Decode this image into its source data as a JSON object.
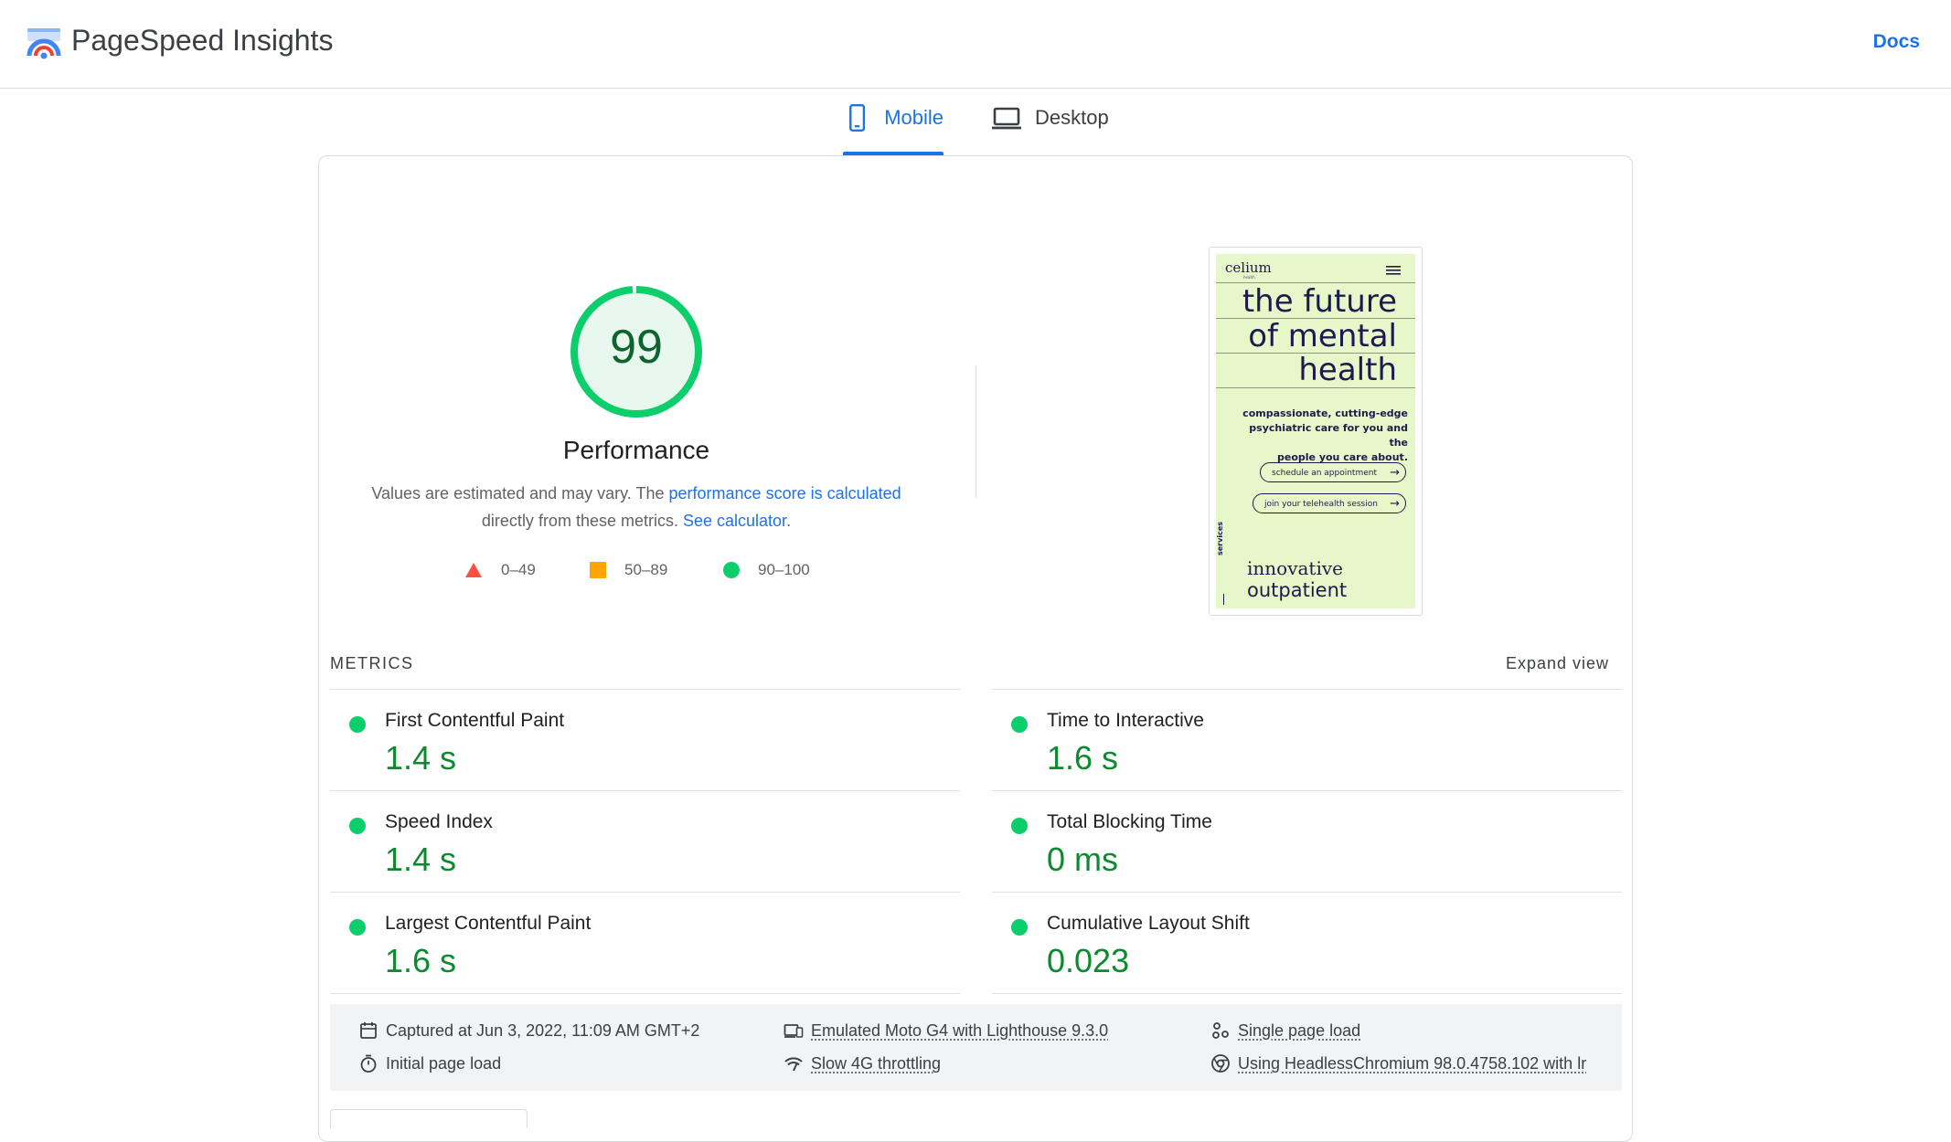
{
  "header": {
    "app_title": "PageSpeed Insights",
    "docs_label": "Docs"
  },
  "tabs": [
    {
      "label": "Mobile",
      "active": true
    },
    {
      "label": "Desktop",
      "active": false
    }
  ],
  "performance": {
    "score": "99",
    "title": "Performance",
    "desc_prefix": "Values are estimated and may vary. The ",
    "desc_link1": "performance score is calculated",
    "desc_middle": "directly from these metrics. ",
    "desc_link2": "See calculator",
    "desc_suffix": ".",
    "legend": [
      {
        "range": "0–49",
        "color": "#ff4e42",
        "shape": "triangle"
      },
      {
        "range": "50–89",
        "color": "#ffa400",
        "shape": "square"
      },
      {
        "range": "90–100",
        "color": "#0cce6b",
        "shape": "circle"
      }
    ]
  },
  "screenshot": {
    "brand": "celium",
    "brand_sub": "health",
    "headline": [
      "the future",
      "of mental",
      "health"
    ],
    "tagline": [
      "compassionate, cutting-edge",
      "psychiatric care for you and the",
      "people you care about."
    ],
    "button1": "schedule an appointment",
    "button2": "join your telehealth session",
    "services_label": "services",
    "subhead1": "innovative",
    "subhead2": "outpatient"
  },
  "metrics": {
    "section_label": "METRICS",
    "expand_label": "Expand view",
    "items": [
      {
        "name": "First Contentful Paint",
        "value": "1.4 s"
      },
      {
        "name": "Time to Interactive",
        "value": "1.6 s"
      },
      {
        "name": "Speed Index",
        "value": "1.4 s"
      },
      {
        "name": "Total Blocking Time",
        "value": "0 ms"
      },
      {
        "name": "Largest Contentful Paint",
        "value": "1.6 s"
      },
      {
        "name": "Cumulative Layout Shift",
        "value": "0.023"
      }
    ],
    "status_color": "#0cce6b"
  },
  "info": {
    "captured": "Captured at Jun 3, 2022, 11:09 AM GMT+2",
    "initial_load": "Initial page load",
    "emulated": "Emulated Moto G4 with Lighthouse 9.3.0",
    "throttling": "Slow 4G throttling",
    "single_load": "Single page load",
    "browser": "Using HeadlessChromium 98.0.4758.102 with lr"
  },
  "icons": {
    "logo": "pagespeed-logo-icon",
    "mobile": "phone-icon",
    "desktop": "laptop-icon",
    "calendar": "calendar-icon",
    "timer": "timer-icon",
    "device": "devices-icon",
    "network": "signal-icon",
    "single": "nodes-icon",
    "chrome": "chrome-icon",
    "menu": "hamburger-menu-icon"
  }
}
